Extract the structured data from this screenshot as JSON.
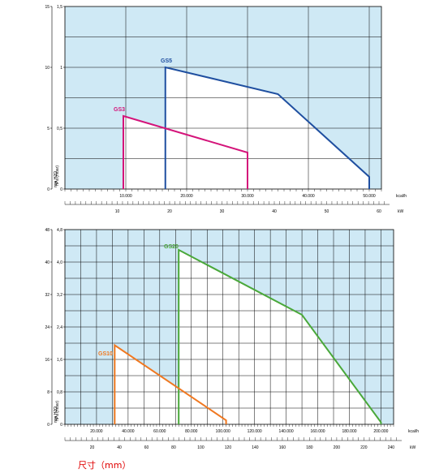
{
  "caption": "尺寸（mm）",
  "chart_data": [
    {
      "type": "area",
      "y_left_ticks": [
        "0",
        "5",
        "10",
        "15"
      ],
      "y_left_label": "mm H2O",
      "y_right_ticks": [
        "0",
        "0,5",
        "1",
        "1,5"
      ],
      "y_right_label": "hPa (mbar)",
      "ylim": [
        0,
        1.5
      ],
      "x_kcal_ticks": [
        "10.000",
        "20.000",
        "30.000",
        "40.000",
        "50.000"
      ],
      "x_kcal_unit": "kcal/h",
      "x_kw_ticks": [
        "10",
        "20",
        "30",
        "40",
        "50",
        "60"
      ],
      "x_kw_unit": "kW",
      "xlim_kcal": [
        0,
        52000
      ],
      "grid": true,
      "colors": {
        "background": "#cfe9f5",
        "series_fill": "#ffffff",
        "grid": "#000000"
      },
      "series": [
        {
          "name": "GS5",
          "color": "#1f4fa0",
          "x": [
            16500,
            16500,
            35000,
            50000,
            50000
          ],
          "y": [
            0,
            1.0,
            0.78,
            0.1,
            0
          ]
        },
        {
          "name": "GS3",
          "color": "#d4147a",
          "x": [
            9600,
            9600,
            30000,
            30000
          ],
          "y": [
            0,
            0.6,
            0.3,
            0
          ]
        }
      ]
    },
    {
      "type": "area",
      "y_left_ticks": [
        "0",
        "8",
        "16",
        "24",
        "32",
        "40",
        "48"
      ],
      "y_left_label": "mm H2O",
      "y_right_ticks": [
        "0",
        "0,8",
        "1,6",
        "2,4",
        "3,2",
        "4,0",
        "4,8"
      ],
      "y_right_label": "hPa (mbar)",
      "ylim": [
        0,
        4.8
      ],
      "x_kcal_ticks": [
        "20.000",
        "40.000",
        "60.000",
        "80.000",
        "100.000",
        "120.000",
        "140.000",
        "160.000",
        "180.000",
        "200.000"
      ],
      "x_kcal_unit": "kcal/h",
      "x_kw_ticks": [
        "20",
        "40",
        "60",
        "80",
        "100",
        "120",
        "140",
        "160",
        "180",
        "200",
        "220",
        "240"
      ],
      "x_kw_unit": "kW",
      "xlim_kcal": [
        0,
        208000
      ],
      "grid": true,
      "colors": {
        "background": "#cfe9f5",
        "series_fill": "#ffffff",
        "grid": "#000000"
      },
      "series": [
        {
          "name": "GS20",
          "color": "#4aa83a",
          "x": [
            72000,
            72000,
            150000,
            200000,
            200000
          ],
          "y": [
            0,
            4.3,
            2.7,
            0.05,
            0
          ]
        },
        {
          "name": "GS10",
          "color": "#f07820",
          "x": [
            31500,
            31500,
            102000,
            102000
          ],
          "y": [
            0,
            1.95,
            0.1,
            0
          ]
        }
      ]
    }
  ]
}
